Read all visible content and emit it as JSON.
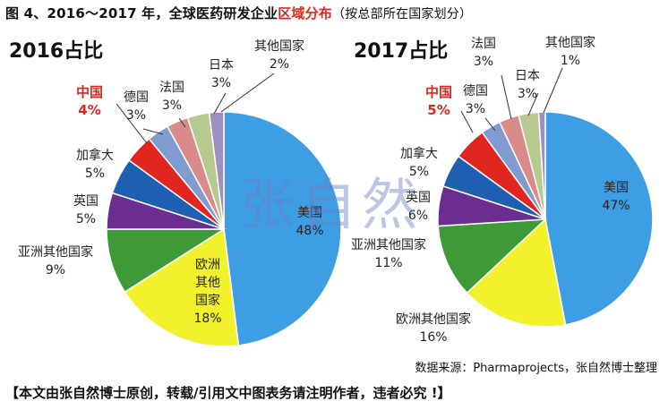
{
  "figure": {
    "title_prefix": "图 4、2016～2017 年，全球医药研发企业",
    "title_highlight": "区域分布",
    "title_note": "（按总部所在国家划分）",
    "watermark": "张自然",
    "source": "数据来源：Pharmaprojects，张自然博士整理",
    "banner": "【本文由张自然博士原创，转载/引用文中图表务请注明作者，违者必究 !】"
  },
  "chart_data": [
    {
      "type": "pie",
      "title": "2016占比",
      "slices": [
        {
          "name": "美国",
          "value": 48,
          "label": "48%",
          "color": "#3d9ee3"
        },
        {
          "name": "欧洲其他国家",
          "value": 18,
          "label": "18%",
          "color": "#f2f22c"
        },
        {
          "name": "亚洲其他国家",
          "value": 9,
          "label": "9%",
          "color": "#3e9a37"
        },
        {
          "name": "英国",
          "value": 5,
          "label": "5%",
          "color": "#6a2e90"
        },
        {
          "name": "加拿大",
          "value": 5,
          "label": "5%",
          "color": "#1f5fb2"
        },
        {
          "name": "中国",
          "value": 4,
          "label": "4%",
          "color": "#e0261f",
          "highlight": true
        },
        {
          "name": "德国",
          "value": 3,
          "label": "3%",
          "color": "#7f9bd0"
        },
        {
          "name": "法国",
          "value": 3,
          "label": "3%",
          "color": "#d98b8b"
        },
        {
          "name": "日本",
          "value": 3,
          "label": "3%",
          "color": "#b7c98f"
        },
        {
          "name": "其他国家",
          "value": 2,
          "label": "2%",
          "color": "#9d8fbf"
        }
      ]
    },
    {
      "type": "pie",
      "title": "2017占比",
      "slices": [
        {
          "name": "美国",
          "value": 47,
          "label": "47%",
          "color": "#3d9ee3"
        },
        {
          "name": "欧洲其他国家",
          "value": 16,
          "label": "16%",
          "color": "#f2f22c"
        },
        {
          "name": "亚洲其他国家",
          "value": 11,
          "label": "11%",
          "color": "#3e9a37"
        },
        {
          "name": "英国",
          "value": 6,
          "label": "6%",
          "color": "#6a2e90"
        },
        {
          "name": "加拿大",
          "value": 5,
          "label": "5%",
          "color": "#1f5fb2"
        },
        {
          "name": "中国",
          "value": 5,
          "label": "5%",
          "color": "#e0261f",
          "highlight": true
        },
        {
          "name": "德国",
          "value": 3,
          "label": "3%",
          "color": "#7f9bd0"
        },
        {
          "name": "法国",
          "value": 3,
          "label": "3%",
          "color": "#d98b8b"
        },
        {
          "name": "日本",
          "value": 3,
          "label": "3%",
          "color": "#b7c98f"
        },
        {
          "name": "其他国家",
          "value": 1,
          "label": "1%",
          "color": "#9d8fbf"
        }
      ]
    }
  ]
}
